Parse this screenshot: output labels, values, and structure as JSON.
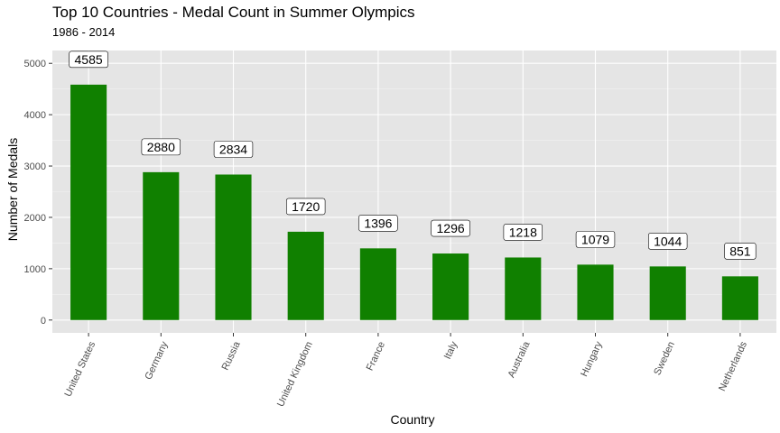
{
  "chart_data": {
    "type": "bar",
    "title": "Top 10 Countries - Medal Count in Summer Olympics",
    "subtitle": "1986 - 2014",
    "xlabel": "Country",
    "ylabel": "Number of Medals",
    "categories": [
      "United States",
      "Germany",
      "Russia",
      "United Kingdom",
      "France",
      "Italy",
      "Australia",
      "Hungary",
      "Sweden",
      "Netherlands"
    ],
    "values": [
      4585,
      2880,
      2834,
      1720,
      1396,
      1296,
      1218,
      1079,
      1044,
      851
    ],
    "data_labels": [
      "4585",
      "2880",
      "2834",
      "1720",
      "1396",
      "1296",
      "1218",
      "1079",
      "1044",
      "851"
    ],
    "y_ticks": [
      0,
      1000,
      2000,
      3000,
      4000,
      5000
    ],
    "y_tick_labels": [
      "0",
      "1000",
      "2000",
      "3000",
      "4000",
      "5000"
    ],
    "ylim": [
      -250,
      5250
    ],
    "grid": true,
    "legend": "none",
    "colors": {
      "bar": "#108000",
      "panel": "#e5e5e5",
      "grid_major": "#ffffff",
      "grid_minor": "#f2f2f2"
    }
  }
}
